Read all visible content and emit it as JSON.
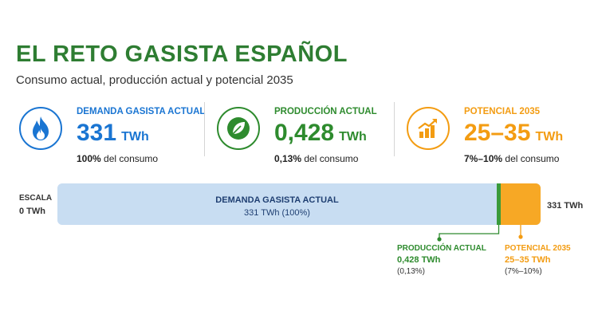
{
  "header": {
    "title": "EL RETO GASISTA ESPAÑOL",
    "subtitle": "Consumo actual, producción actual y potencial 2035"
  },
  "cards": {
    "demand": {
      "label": "DEMANDA GASISTA ACTUAL",
      "value": "331",
      "unit": "TWh",
      "share_value": "100%",
      "share_text": "del consumo",
      "icon": "flame-icon",
      "color": "#1a75d2"
    },
    "production": {
      "label": "PRODUCCIÓN ACTUAL",
      "value": "0,428",
      "unit": "TWh",
      "share_value": "0,13%",
      "share_text": "del consumo",
      "icon": "leaf-icon",
      "color": "#2e8b2e"
    },
    "potential": {
      "label": "POTENCIAL 2035",
      "value": "25–35",
      "unit": "TWh",
      "share_value": "7%–10%",
      "share_text": "del consumo",
      "icon": "growth-chart-icon",
      "color": "#f39c12"
    }
  },
  "scale": {
    "label": "ESCALA",
    "start": "0 TWh",
    "end": "331 TWh"
  },
  "chart_data": {
    "type": "bar",
    "orientation": "horizontal-stacked",
    "xlim": [
      0,
      331
    ],
    "unit": "TWh",
    "series": [
      {
        "name": "DEMANDA GASISTA ACTUAL",
        "value": 331,
        "label": "331 TWh (100%)",
        "color": "#c8ddf2"
      },
      {
        "name": "PRODUCCIÓN ACTUAL",
        "value": 0.428,
        "label": "0,428 TWh",
        "note": "(0,13%)",
        "color": "#3a9a3a"
      },
      {
        "name": "POTENCIAL 2035",
        "value_range": [
          25,
          35
        ],
        "label": "25–35 TWh",
        "note": "(7%–10%)",
        "color": "#f7a825"
      }
    ]
  }
}
